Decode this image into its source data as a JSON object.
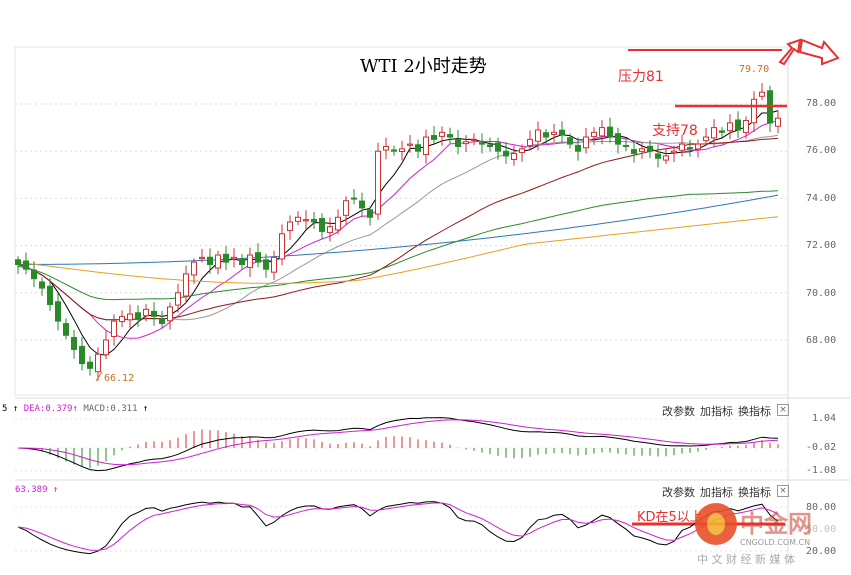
{
  "chart_data": {
    "type": "candlestick",
    "title": "WTI 2小时走势",
    "ylim": [
      66.5,
      80.0
    ],
    "y_ticks": [
      "78.00",
      "76.00",
      "74.00",
      "72.00",
      "70.00",
      "68.00"
    ],
    "y_tick_values": [
      78,
      76,
      74,
      72,
      70,
      68
    ],
    "close": [
      71.2,
      71.0,
      70.6,
      70.2,
      69.5,
      68.8,
      68.2,
      67.6,
      67.0,
      66.8,
      67.4,
      68.0,
      68.8,
      69.0,
      69.1,
      68.9,
      69.3,
      69.0,
      68.7,
      69.4,
      70.0,
      70.8,
      71.3,
      71.5,
      71.2,
      71.6,
      71.3,
      71.5,
      71.2,
      71.6,
      71.3,
      71.0,
      71.5,
      72.5,
      73.0,
      73.2,
      73.1,
      73.0,
      72.6,
      72.8,
      73.2,
      73.9,
      74.0,
      73.6,
      73.2,
      76.0,
      76.2,
      76.0,
      76.1,
      76.3,
      76.0,
      76.6,
      76.5,
      76.8,
      76.6,
      76.2,
      76.4,
      76.5,
      76.3,
      76.2,
      76.0,
      75.8,
      75.9,
      76.1,
      76.5,
      76.9,
      76.6,
      76.8,
      76.7,
      76.3,
      76.0,
      76.6,
      76.8,
      77.0,
      76.6,
      76.3,
      76.2,
      75.9,
      76.1,
      76.0,
      75.7,
      75.8,
      76.0,
      76.3,
      76.1,
      76.3,
      76.6,
      77.0,
      76.8,
      77.2,
      76.9,
      77.3,
      78.2,
      78.5,
      77.2,
      77.4
    ],
    "annotations": {
      "high_label": "79.70",
      "low_label": "66.12",
      "resistance": "压力81",
      "support": "支持78",
      "resistance_value": 81,
      "support_value": 78
    },
    "ma_periods": [
      5,
      10,
      20,
      40,
      60,
      120
    ],
    "ma_colors": [
      "#000000",
      "#d020d0",
      "#999999",
      "#8b1a1a",
      "#2a8a2a",
      "#2a7ab8"
    ],
    "ma_extra_color": "#e8a020"
  },
  "macd": {
    "prefix": "5",
    "dea_label": "DEA:0.379",
    "macd_label": "MACD:0.311",
    "ticks": [
      "1.04",
      "-0.02",
      "-1.08"
    ]
  },
  "kd": {
    "label": "63.389",
    "ticks": [
      "80.00",
      "50.00",
      "20.00"
    ],
    "note": "KD在5以上"
  },
  "toolbar": {
    "change_params": "改参数",
    "add_indicator": "加指标",
    "switch_indicator": "换指标",
    "close": "×"
  },
  "watermark": {
    "brand": "中金网",
    "domain": "CNGOLD.COM.CN",
    "slogan": "中 文 财 经 新 媒 体"
  },
  "colors": {
    "up": "#d03030",
    "down": "#2a8a2a",
    "annotation": "#e83030",
    "dea": "#d020d0"
  }
}
